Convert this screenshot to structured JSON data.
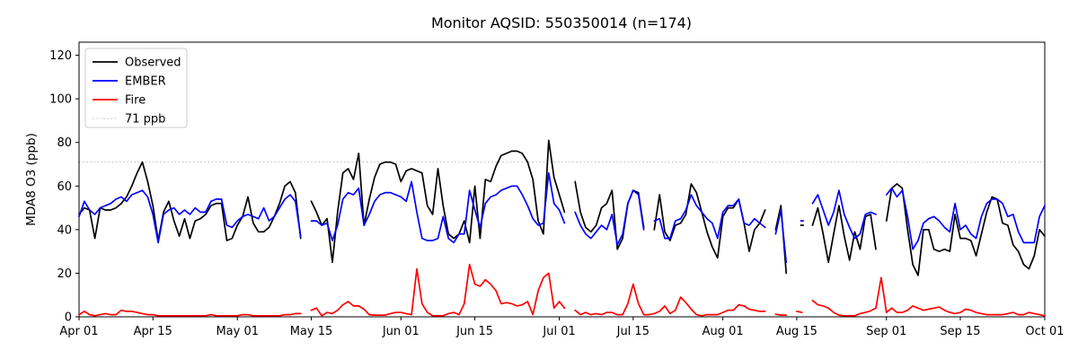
{
  "chart": {
    "title": "Monitor AQSID: 550350014 (n=174)",
    "ylabel": "MDA8 O3 (ppb)",
    "colors": {
      "observed": "#000000",
      "ember": "#0000ff",
      "fire": "#ff0000",
      "threshold": "#c8c8c8",
      "spine": "#000000"
    },
    "legend": [
      {
        "label": "Observed",
        "color": "#000000",
        "dash": "none"
      },
      {
        "label": "EMBER",
        "color": "#0000ff",
        "dash": "none"
      },
      {
        "label": "Fire",
        "color": "#ff0000",
        "dash": "none"
      },
      {
        "label": "71 ppb",
        "color": "#c8c8c8",
        "dash": "dotted"
      }
    ]
  },
  "chart_data": {
    "type": "line",
    "title": "Monitor AQSID: 550350014 (n=174)",
    "xlabel": "",
    "ylabel": "MDA8 O3 (ppb)",
    "ylim": [
      0,
      126
    ],
    "yticks": [
      0,
      20,
      40,
      60,
      80,
      100,
      120
    ],
    "xtick_labels": [
      "Apr 01",
      "Apr 15",
      "May 01",
      "May 15",
      "Jun 01",
      "Jun 15",
      "Jul 01",
      "Jul 15",
      "Aug 01",
      "Aug 15",
      "Sep 01",
      "Sep 15",
      "Oct 01"
    ],
    "xtick_day_index": [
      0,
      14,
      30,
      44,
      61,
      75,
      91,
      105,
      122,
      136,
      153,
      167,
      183
    ],
    "threshold_ppb": 71,
    "legend_position": "upper left",
    "grid": false,
    "dates": [
      "Apr 01",
      "Apr 02",
      "Apr 03",
      "Apr 04",
      "Apr 05",
      "Apr 06",
      "Apr 07",
      "Apr 08",
      "Apr 09",
      "Apr 10",
      "Apr 11",
      "Apr 12",
      "Apr 13",
      "Apr 14",
      "Apr 15",
      "Apr 16",
      "Apr 17",
      "Apr 18",
      "Apr 19",
      "Apr 20",
      "Apr 21",
      "Apr 22",
      "Apr 23",
      "Apr 24",
      "Apr 25",
      "Apr 26",
      "Apr 27",
      "Apr 28",
      "Apr 29",
      "Apr 30",
      "May 01",
      "May 02",
      "May 03",
      "May 04",
      "May 05",
      "May 06",
      "May 07",
      "May 08",
      "May 09",
      "May 10",
      "May 11",
      "May 12",
      "May 13",
      "May 14",
      "May 15",
      "May 16",
      "May 17",
      "May 18",
      "May 19",
      "May 20",
      "May 21",
      "May 22",
      "May 23",
      "May 24",
      "May 25",
      "May 26",
      "May 27",
      "May 28",
      "May 29",
      "May 30",
      "May 31",
      "Jun 01",
      "Jun 02",
      "Jun 03",
      "Jun 04",
      "Jun 05",
      "Jun 06",
      "Jun 07",
      "Jun 08",
      "Jun 09",
      "Jun 10",
      "Jun 11",
      "Jun 12",
      "Jun 13",
      "Jun 14",
      "Jun 15",
      "Jun 16",
      "Jun 17",
      "Jun 18",
      "Jun 19",
      "Jun 20",
      "Jun 21",
      "Jun 22",
      "Jun 23",
      "Jun 24",
      "Jun 25",
      "Jun 26",
      "Jun 27",
      "Jun 28",
      "Jun 29",
      "Jun 30",
      "Jul 01",
      "Jul 02",
      "Jul 03",
      "Jul 04",
      "Jul 05",
      "Jul 06",
      "Jul 07",
      "Jul 08",
      "Jul 09",
      "Jul 10",
      "Jul 11",
      "Jul 12",
      "Jul 13",
      "Jul 14",
      "Jul 15",
      "Jul 16",
      "Jul 17",
      "Jul 18",
      "Jul 19",
      "Jul 20",
      "Jul 21",
      "Jul 22",
      "Jul 23",
      "Jul 24",
      "Jul 25",
      "Jul 26",
      "Jul 27",
      "Jul 28",
      "Jul 29",
      "Jul 30",
      "Jul 31",
      "Aug 01",
      "Aug 02",
      "Aug 03",
      "Aug 04",
      "Aug 05",
      "Aug 06",
      "Aug 07",
      "Aug 08",
      "Aug 09",
      "Aug 10",
      "Aug 11",
      "Aug 12",
      "Aug 13",
      "Aug 14",
      "Aug 15",
      "Aug 16",
      "Aug 17",
      "Aug 18",
      "Aug 19",
      "Aug 20",
      "Aug 21",
      "Aug 22",
      "Aug 23",
      "Aug 24",
      "Aug 25",
      "Aug 26",
      "Aug 27",
      "Aug 28",
      "Aug 29",
      "Aug 30",
      "Aug 31",
      "Sep 01",
      "Sep 02",
      "Sep 03",
      "Sep 04",
      "Sep 05",
      "Sep 06",
      "Sep 07",
      "Sep 08",
      "Sep 09",
      "Sep 10",
      "Sep 11",
      "Sep 12",
      "Sep 13",
      "Sep 14",
      "Sep 15",
      "Sep 16",
      "Sep 17",
      "Sep 18",
      "Sep 19",
      "Sep 20",
      "Sep 21",
      "Sep 22",
      "Sep 23",
      "Sep 24",
      "Sep 25",
      "Sep 26",
      "Sep 27",
      "Sep 28",
      "Sep 29",
      "Sep 30",
      "Oct 01"
    ],
    "series": [
      {
        "name": "Observed",
        "color": "#000000",
        "values": [
          47,
          50,
          49,
          36,
          50,
          49,
          49,
          50,
          52,
          55,
          60,
          66,
          71,
          62,
          51,
          35,
          48,
          53,
          44,
          37,
          45,
          36,
          44,
          45,
          47,
          51,
          52,
          52,
          35,
          36,
          42,
          46,
          55,
          43,
          39,
          39,
          41,
          46,
          52,
          60,
          62,
          57,
          36,
          null,
          53,
          48,
          42,
          45,
          25,
          48,
          66,
          68,
          63,
          75,
          42,
          54,
          64,
          70,
          71,
          71,
          70,
          62,
          67,
          68,
          67,
          66,
          51,
          47,
          68,
          51,
          38,
          36,
          38,
          44,
          34,
          60,
          36,
          63,
          62,
          69,
          74,
          75,
          76,
          76,
          75,
          71,
          63,
          44,
          38,
          81,
          64,
          56,
          48,
          null,
          62,
          48,
          41,
          39,
          42,
          50,
          52,
          58,
          31,
          36,
          52,
          58,
          57,
          41,
          null,
          40,
          56,
          39,
          35,
          42,
          43,
          47,
          61,
          57,
          48,
          39,
          32,
          27,
          46,
          50,
          50,
          54,
          43,
          30,
          40,
          43,
          49,
          null,
          40,
          51,
          20,
          null,
          null,
          42,
          null,
          42,
          50,
          38,
          25,
          38,
          51,
          37,
          26,
          39,
          31,
          46,
          47,
          31,
          null,
          44,
          59,
          61,
          59,
          40,
          24,
          19,
          40,
          40,
          31,
          30,
          31,
          30,
          47,
          36,
          36,
          35,
          28,
          38,
          48,
          55,
          54,
          43,
          42,
          33,
          30,
          24,
          22,
          28,
          40,
          37
        ]
      },
      {
        "name": "EMBER",
        "color": "#0000ff",
        "values": [
          46,
          53,
          49,
          47,
          50,
          51,
          52,
          54,
          55,
          53,
          56,
          57,
          58,
          55,
          47,
          34,
          47,
          49,
          50,
          47,
          49,
          47,
          50,
          48,
          48,
          53,
          54,
          54,
          42,
          41,
          44,
          46,
          47,
          46,
          45,
          50,
          44,
          46,
          50,
          54,
          56,
          53,
          37,
          null,
          44,
          44,
          42,
          43,
          35,
          42,
          54,
          57,
          56,
          59,
          42,
          47,
          53,
          56,
          57,
          57,
          56,
          55,
          53,
          62,
          48,
          36,
          35,
          35,
          36,
          46,
          36,
          34,
          38,
          38,
          58,
          49,
          41,
          52,
          55,
          56,
          58,
          59,
          60,
          60,
          56,
          51,
          45,
          42,
          43,
          66,
          52,
          49,
          43,
          null,
          48,
          42,
          38,
          36,
          39,
          42,
          40,
          47,
          33,
          38,
          52,
          58,
          56,
          40,
          null,
          44,
          45,
          36,
          36,
          44,
          45,
          49,
          56,
          51,
          48,
          45,
          43,
          36,
          48,
          51,
          51,
          54,
          43,
          42,
          45,
          43,
          41,
          null,
          38,
          49,
          25,
          null,
          null,
          44,
          null,
          52,
          56,
          49,
          42,
          48,
          58,
          47,
          41,
          36,
          38,
          47,
          48,
          47,
          null,
          56,
          59,
          55,
          58,
          46,
          31,
          35,
          43,
          45,
          46,
          44,
          41,
          39,
          52,
          40,
          42,
          38,
          36,
          46,
          52,
          54,
          54,
          52,
          46,
          47,
          39,
          34,
          34,
          34,
          46,
          51
        ]
      },
      {
        "name": "Fire",
        "color": "#ff0000",
        "values": [
          1,
          2.5,
          1,
          0.5,
          1,
          1.5,
          1,
          1,
          3,
          2.5,
          2.5,
          2,
          1.5,
          1,
          1,
          0.5,
          0.5,
          0.5,
          0.5,
          0.5,
          0.5,
          0.5,
          0.5,
          0.5,
          0.5,
          1,
          0.5,
          0.5,
          0.5,
          0.5,
          0.5,
          1,
          1,
          0.5,
          0.5,
          0.5,
          0.5,
          0.5,
          0.5,
          1,
          1,
          1.5,
          1.5,
          null,
          3,
          4,
          0.5,
          2,
          1.5,
          3,
          5.5,
          7,
          5,
          5,
          3.5,
          1,
          0.8,
          0.8,
          0.8,
          1.5,
          2,
          2,
          1.5,
          1,
          22,
          6,
          2,
          0.5,
          0.5,
          0.5,
          1.5,
          2,
          1,
          6,
          24,
          15,
          14,
          17,
          15,
          12,
          6,
          6.5,
          6,
          5,
          5.5,
          7,
          1,
          12,
          18,
          20,
          4,
          7,
          4,
          null,
          3,
          1,
          2,
          1,
          1.5,
          1,
          2,
          2,
          1,
          1,
          6,
          15,
          6,
          1,
          1,
          1.5,
          2.5,
          5,
          1.5,
          3,
          9,
          6.5,
          3.5,
          1,
          0.5,
          1,
          1,
          1,
          2,
          3,
          3,
          5.5,
          5,
          3.5,
          3,
          2.5,
          2.5,
          null,
          1.2,
          0.8,
          0.8,
          null,
          2.5,
          2,
          null,
          7.5,
          5.5,
          5,
          4,
          2,
          0.8,
          0.5,
          0.5,
          0.5,
          1.5,
          2,
          2.7,
          4,
          18,
          2,
          4,
          2,
          2,
          3,
          5,
          4,
          3,
          3.5,
          4,
          4.5,
          3,
          2,
          1.5,
          2,
          3.5,
          3,
          2,
          1.5,
          1,
          1,
          1,
          1,
          1.5,
          2,
          1,
          1,
          2,
          1.5,
          1,
          0.5
        ]
      }
    ]
  }
}
